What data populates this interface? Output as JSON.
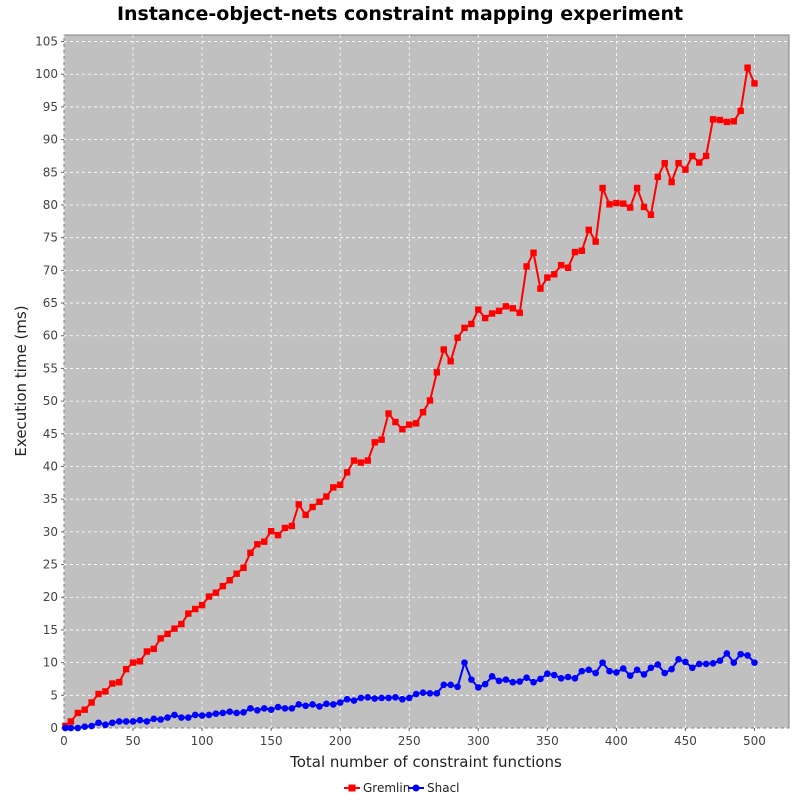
{
  "chart_data": {
    "type": "line",
    "title": "Instance-object-nets constraint mapping experiment",
    "xlabel": "Total number of constraint functions",
    "ylabel": "Execution time (ms)",
    "xlim": [
      0,
      525
    ],
    "ylim": [
      0,
      106
    ],
    "x_ticks": [
      "0",
      "50",
      "100",
      "150",
      "200",
      "250",
      "300",
      "350",
      "400",
      "450",
      "500"
    ],
    "y_ticks": [
      "0",
      "5",
      "10",
      "15",
      "20",
      "25",
      "30",
      "35",
      "40",
      "45",
      "50",
      "55",
      "60",
      "65",
      "70",
      "75",
      "80",
      "85",
      "90",
      "95",
      "100",
      "105"
    ],
    "grid": true,
    "background": "#c0c0c0",
    "legend_position": "bottom-center",
    "x": [
      1,
      5,
      10,
      15,
      20,
      25,
      30,
      35,
      40,
      45,
      50,
      55,
      60,
      65,
      70,
      75,
      80,
      85,
      90,
      95,
      100,
      105,
      110,
      115,
      120,
      125,
      130,
      135,
      140,
      145,
      150,
      155,
      160,
      165,
      170,
      175,
      180,
      185,
      190,
      195,
      200,
      205,
      210,
      215,
      220,
      225,
      230,
      235,
      240,
      245,
      250,
      255,
      260,
      265,
      270,
      275,
      280,
      285,
      290,
      295,
      300,
      305,
      310,
      315,
      320,
      325,
      330,
      335,
      340,
      345,
      350,
      355,
      360,
      365,
      370,
      375,
      380,
      385,
      390,
      395,
      400,
      405,
      410,
      415,
      420,
      425,
      430,
      435,
      440,
      445,
      450,
      455,
      460,
      465,
      470,
      475,
      480,
      485,
      490,
      495,
      500
    ],
    "series": [
      {
        "name": "Gremlin",
        "color": "#ff0000",
        "marker": "square",
        "values": [
          0.3,
          1.0,
          2.3,
          2.8,
          3.9,
          5.2,
          5.6,
          6.8,
          7.0,
          9.0,
          10.0,
          10.2,
          11.7,
          12.1,
          13.7,
          14.4,
          15.2,
          15.9,
          17.5,
          18.2,
          18.8,
          20.1,
          20.7,
          21.7,
          22.6,
          23.6,
          24.5,
          26.8,
          28.1,
          28.5,
          30.1,
          29.5,
          30.6,
          30.9,
          34.2,
          32.6,
          33.8,
          34.6,
          35.4,
          36.8,
          37.2,
          39.1,
          40.9,
          40.6,
          40.9,
          43.7,
          44.1,
          48.1,
          46.8,
          45.7,
          46.4,
          46.6,
          48.3,
          50.1,
          54.4,
          57.9,
          56.1,
          59.7,
          61.2,
          61.8,
          64.0,
          62.7,
          63.4,
          63.8,
          64.5,
          64.2,
          63.5,
          70.6,
          72.7,
          67.2,
          68.9,
          69.4,
          70.8,
          70.4,
          72.8,
          73.0,
          76.2,
          74.4,
          82.6,
          80.1,
          80.3,
          80.2,
          79.6,
          82.6,
          79.7,
          78.5,
          84.3,
          86.4,
          83.5,
          86.4,
          85.4,
          87.5,
          86.5,
          87.5,
          93.1,
          93.0,
          92.7,
          92.8,
          94.4,
          101.0,
          98.6
        ]
      },
      {
        "name": "Shacl",
        "color": "#0000ff",
        "marker": "circle",
        "values": [
          0.0,
          0.0,
          0.0,
          0.2,
          0.3,
          0.8,
          0.5,
          0.8,
          1.0,
          1.0,
          1.0,
          1.2,
          1.0,
          1.4,
          1.3,
          1.6,
          2.0,
          1.6,
          1.6,
          2.0,
          1.9,
          2.0,
          2.2,
          2.3,
          2.5,
          2.3,
          2.4,
          3.0,
          2.7,
          3.0,
          2.8,
          3.2,
          3.0,
          3.0,
          3.6,
          3.4,
          3.6,
          3.3,
          3.7,
          3.6,
          3.9,
          4.4,
          4.2,
          4.6,
          4.7,
          4.5,
          4.6,
          4.6,
          4.7,
          4.4,
          4.6,
          5.2,
          5.4,
          5.3,
          5.3,
          6.6,
          6.6,
          6.3,
          10.0,
          7.4,
          6.2,
          6.7,
          7.9,
          7.2,
          7.4,
          7.0,
          7.1,
          7.7,
          7.0,
          7.5,
          8.3,
          8.1,
          7.6,
          7.8,
          7.6,
          8.7,
          8.9,
          8.4,
          10.0,
          8.7,
          8.5,
          9.1,
          8.0,
          8.9,
          8.2,
          9.2,
          9.7,
          8.4,
          9.0,
          10.5,
          10.1,
          9.2,
          9.8,
          9.8,
          9.9,
          10.3,
          11.4,
          10.0,
          11.3,
          11.1,
          10.0
        ]
      }
    ]
  }
}
